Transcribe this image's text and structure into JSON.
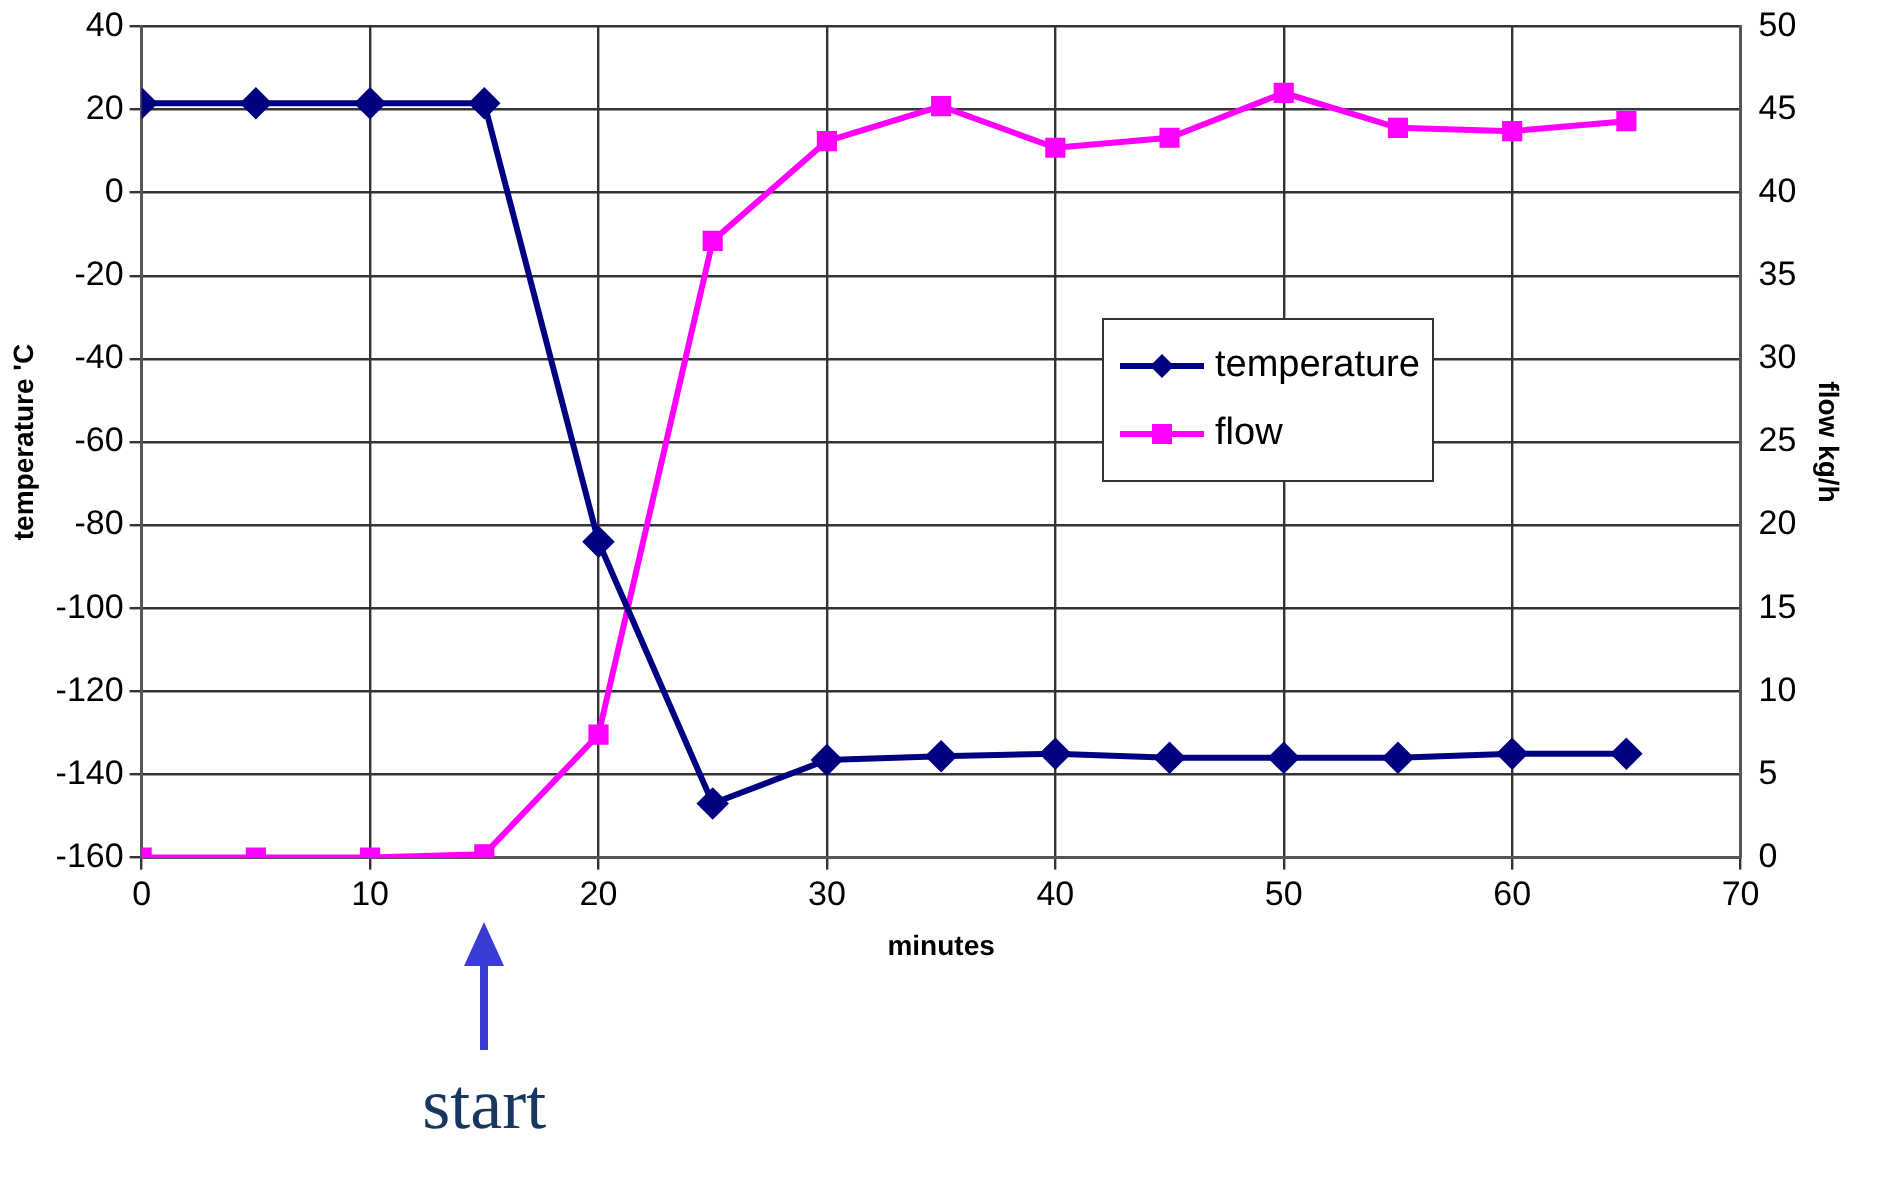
{
  "chart_data": {
    "type": "line",
    "xlabel": "minutes",
    "ylabel": "temperature 'C",
    "y2label": "flow kg/h",
    "xlim": [
      0,
      70
    ],
    "xticks": [
      0,
      10,
      20,
      30,
      40,
      50,
      60,
      70
    ],
    "ylim": [
      -160,
      40
    ],
    "yticks": [
      -160,
      -140,
      -120,
      -100,
      -80,
      -60,
      -40,
      -20,
      0,
      20,
      40
    ],
    "y2lim": [
      0,
      50
    ],
    "y2ticks": [
      0,
      5,
      10,
      15,
      20,
      25,
      30,
      35,
      40,
      45,
      50
    ],
    "grid": true,
    "legend": "right",
    "x": [
      0,
      5,
      10,
      15,
      20,
      25,
      30,
      35,
      40,
      45,
      50,
      55,
      60,
      65
    ],
    "series": [
      {
        "name": "temperature",
        "color": "#000080",
        "marker": "diamond",
        "values": [
          21.5,
          21.5,
          21.5,
          21.5,
          -84,
          -147,
          -136.5,
          -135.6,
          -135,
          -136,
          -136,
          -136,
          -135,
          -135
        ]
      },
      {
        "name": "flow",
        "color": "#ff00ff",
        "marker": "square",
        "axis": "y2",
        "values": [
          0,
          0,
          0,
          0.2,
          7.4,
          37.1,
          43.1,
          45.2,
          42.7,
          43.3,
          46,
          43.9,
          43.7,
          44.3
        ]
      }
    ],
    "annotations": [
      {
        "text": "start",
        "x": 15,
        "y": -160
      }
    ]
  }
}
